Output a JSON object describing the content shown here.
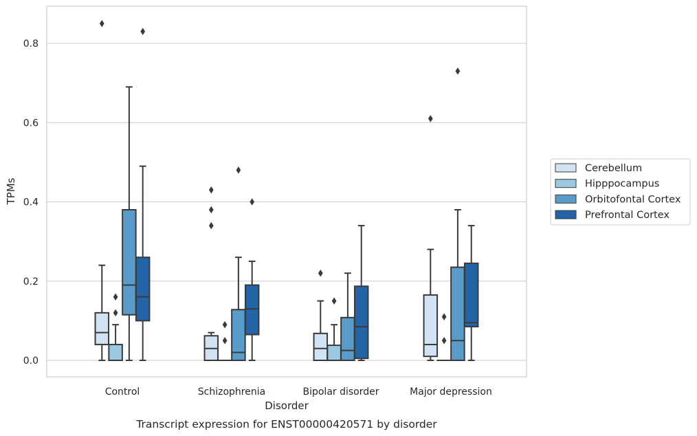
{
  "chart_data": {
    "type": "boxplot",
    "title": "",
    "xlabel": "Disorder",
    "ylabel": "TPMs",
    "caption": "Transcript expression for ENST00000420571 by disorder",
    "ylim": [
      -0.04,
      0.895
    ],
    "yticks": [
      0.0,
      0.2,
      0.4,
      0.6,
      0.8
    ],
    "ytick_labels": [
      "0.0",
      "0.2",
      "0.4",
      "0.6",
      "0.8"
    ],
    "grid": "horizontal",
    "legend_position": "right-outside",
    "categories": [
      "Control",
      "Schizophrenia",
      "Bipolar disorder",
      "Major depression"
    ],
    "series": [
      {
        "name": "Cerebellum",
        "color": "#d1e2f3",
        "boxes": [
          {
            "whisker_low": 0.0,
            "q1": 0.04,
            "median": 0.07,
            "q3": 0.12,
            "whisker_high": 0.24,
            "outliers": [
              0.85
            ]
          },
          {
            "whisker_low": 0.0,
            "q1": 0.0,
            "median": 0.03,
            "q3": 0.062,
            "whisker_high": 0.07,
            "outliers": [
              0.43,
              0.38,
              0.34
            ]
          },
          {
            "whisker_low": 0.0,
            "q1": 0.0,
            "median": 0.03,
            "q3": 0.068,
            "whisker_high": 0.15,
            "outliers": [
              0.22
            ]
          },
          {
            "whisker_low": 0.0,
            "q1": 0.01,
            "median": 0.04,
            "q3": 0.165,
            "whisker_high": 0.28,
            "outliers": [
              0.61
            ]
          }
        ]
      },
      {
        "name": "Hipppocampus",
        "color": "#9ac8e0",
        "boxes": [
          {
            "whisker_low": 0.0,
            "q1": 0.0,
            "median": 0.0,
            "q3": 0.04,
            "whisker_high": 0.09,
            "outliers": [
              0.16,
              0.12
            ]
          },
          {
            "whisker_low": 0.0,
            "q1": 0.0,
            "median": 0.0,
            "q3": 0.0,
            "whisker_high": 0.0,
            "outliers": [
              0.09,
              0.05
            ]
          },
          {
            "whisker_low": 0.0,
            "q1": 0.0,
            "median": 0.0,
            "q3": 0.038,
            "whisker_high": 0.09,
            "outliers": [
              0.15
            ]
          },
          {
            "whisker_low": 0.0,
            "q1": 0.0,
            "median": 0.0,
            "q3": 0.0,
            "whisker_high": 0.0,
            "outliers": [
              0.11,
              0.05
            ]
          }
        ]
      },
      {
        "name": "Orbitofontal Cortex",
        "color": "#5a9cc9",
        "boxes": [
          {
            "whisker_low": 0.0,
            "q1": 0.115,
            "median": 0.19,
            "q3": 0.38,
            "whisker_high": 0.69,
            "outliers": []
          },
          {
            "whisker_low": 0.0,
            "q1": 0.0,
            "median": 0.02,
            "q3": 0.128,
            "whisker_high": 0.26,
            "outliers": [
              0.48
            ]
          },
          {
            "whisker_low": 0.0,
            "q1": 0.0,
            "median": 0.025,
            "q3": 0.108,
            "whisker_high": 0.22,
            "outliers": []
          },
          {
            "whisker_low": 0.0,
            "q1": 0.0,
            "median": 0.05,
            "q3": 0.235,
            "whisker_high": 0.38,
            "outliers": [
              0.73
            ]
          }
        ]
      },
      {
        "name": "Prefrontal Cortex",
        "color": "#2464a6",
        "boxes": [
          {
            "whisker_low": 0.0,
            "q1": 0.1,
            "median": 0.16,
            "q3": 0.26,
            "whisker_high": 0.49,
            "outliers": [
              0.83
            ]
          },
          {
            "whisker_low": 0.0,
            "q1": 0.065,
            "median": 0.13,
            "q3": 0.19,
            "whisker_high": 0.25,
            "outliers": [
              0.4
            ]
          },
          {
            "whisker_low": 0.0,
            "q1": 0.005,
            "median": 0.085,
            "q3": 0.187,
            "whisker_high": 0.34,
            "outliers": []
          },
          {
            "whisker_low": 0.0,
            "q1": 0.085,
            "median": 0.095,
            "q3": 0.245,
            "whisker_high": 0.34,
            "outliers": []
          }
        ]
      }
    ]
  }
}
